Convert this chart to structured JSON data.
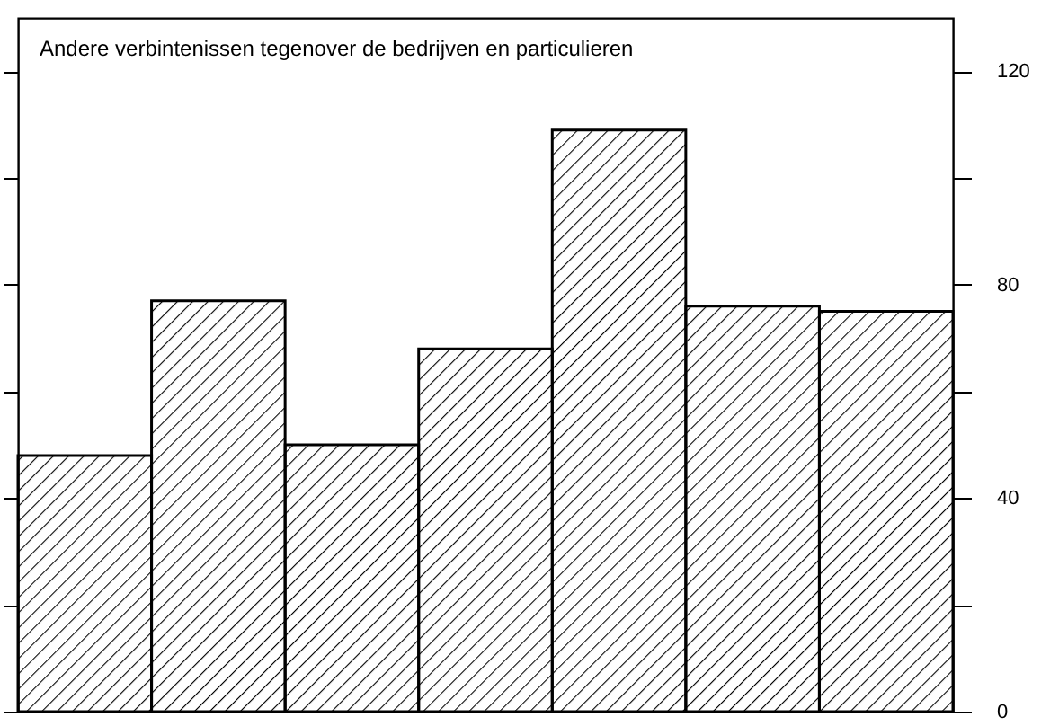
{
  "chart_data": {
    "type": "bar",
    "title": "Andere verbintenissen tegenover de bedrijven en particulieren",
    "categories": [
      null,
      null,
      null,
      null,
      null,
      null,
      null
    ],
    "values": [
      48,
      77,
      50,
      68,
      109,
      76,
      75
    ],
    "color": "#000000",
    "ylim": [
      0,
      130
    ],
    "yticks": [
      0,
      {
        "value": 20,
        "label": null
      },
      40,
      {
        "value": 60,
        "label": null
      },
      80,
      {
        "value": 100,
        "label": null
      },
      120
    ],
    "grid": false
  }
}
